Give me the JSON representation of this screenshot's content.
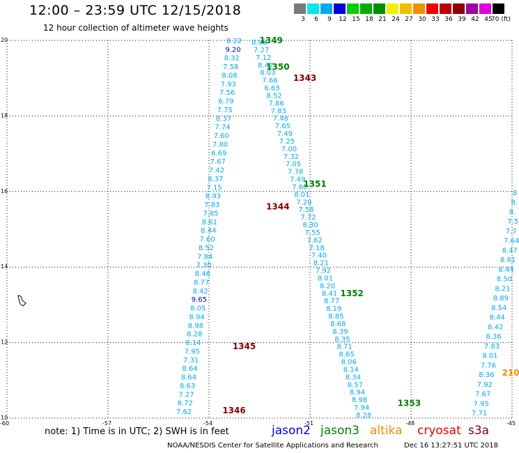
{
  "header": {
    "title": "12:00 – 23:59 UTC 12/15/2018",
    "subtitle": "12 hour collection of altimeter wave heights"
  },
  "color_scale": {
    "labels": [
      "3",
      "6",
      "9",
      "12",
      "15",
      "18",
      "21",
      "24",
      "27",
      "30",
      "33",
      "36",
      "39",
      "42",
      "45",
      "70 (ft)"
    ],
    "colors": [
      "#7a7a7a",
      "#00e8e8",
      "#00a8f0",
      "#0000e0",
      "#00d000",
      "#00b000",
      "#009000",
      "#f0f000",
      "#f0c000",
      "#f09000",
      "#f00000",
      "#c00000",
      "#900000",
      "#a000a0",
      "#e000e0",
      "#000000"
    ]
  },
  "map": {
    "lat_labels": [
      "20",
      "18",
      "16",
      "14",
      "12",
      "10"
    ],
    "lon_labels": [
      "-60",
      "-57",
      "-54",
      "-51",
      "-48",
      "-45"
    ],
    "coast": "coastline-island"
  },
  "chart_data": {
    "type": "scatter",
    "x_axis": "longitude",
    "y_axis": "latitude",
    "xlim": [
      -60,
      -45
    ],
    "ylim": [
      10,
      20
    ],
    "track_labels": [
      {
        "id": "1349",
        "lon": -52.5,
        "lat": 20.0,
        "color": "#008000"
      },
      {
        "id": "1350",
        "lon": -52.3,
        "lat": 19.3,
        "color": "#008000"
      },
      {
        "id": "1343",
        "lon": -51.5,
        "lat": 19.0,
        "color": "#800000"
      },
      {
        "id": "1351",
        "lon": -51.2,
        "lat": 16.2,
        "color": "#008000"
      },
      {
        "id": "1344",
        "lon": -52.3,
        "lat": 15.6,
        "color": "#800000"
      },
      {
        "id": "1352",
        "lon": -50.1,
        "lat": 13.3,
        "color": "#008000"
      },
      {
        "id": "1345",
        "lon": -53.3,
        "lat": 11.9,
        "color": "#800000"
      },
      {
        "id": "1353",
        "lon": -48.4,
        "lat": 10.4,
        "color": "#008000"
      },
      {
        "id": "1346",
        "lon": -53.6,
        "lat": 10.2,
        "color": "#800000"
      },
      {
        "id": "210",
        "lon": -45.3,
        "lat": 11.2,
        "color": "#f08c00"
      }
    ],
    "track_a": {
      "color": "#00a8f0",
      "values": [
        "8.22",
        "9.20",
        "8.32",
        "7.58",
        "8.08",
        "7.93",
        "7.56",
        "6.79",
        "7.75",
        "8.37",
        "7.74",
        "7.60",
        "7.80",
        "6.69",
        "7.67",
        "7.42",
        "8.37",
        "7.15",
        "8.93",
        "7.83",
        "7.85",
        "8.61",
        "8.44",
        "7.60",
        "8.52",
        "7.84",
        "7.30",
        "8.46",
        "8.77",
        "8.42",
        "9.65",
        "8.05",
        "8.94",
        "8.98",
        "8.28",
        "8.14",
        "7.95",
        "7.31",
        "8.64",
        "8.64",
        "8.63",
        "7.27",
        "6.72",
        "7.62"
      ]
    },
    "track_b": {
      "color": "#00a8f0",
      "values": [
        "8.08",
        "7.27",
        "7.12",
        "8.47",
        "8.03",
        "7.66",
        "6.63",
        "8.52",
        "7.86",
        "7.83",
        "7.48",
        "7.65",
        "7.49",
        "7.25",
        "7.00",
        "7.32",
        "7.05",
        "7.78",
        "7.49",
        "7.60",
        "8.01",
        "7.20",
        "7.58",
        "7.72",
        "8.30",
        "7.55",
        "7.62",
        "7.18",
        "7.40",
        "8.21",
        "7.92",
        "8.01",
        "8.20",
        "8.41",
        "8.77",
        "8.19",
        "8.85",
        "8.68",
        "8.39",
        "8.35",
        "8.71",
        "8.65",
        "8.06",
        "8.14",
        "8.34",
        "8.57",
        "8.94",
        "8.98",
        "7.94",
        "8.28"
      ]
    },
    "track_c": {
      "color": "#00a8f0",
      "values": [
        "8",
        "8.",
        "8.",
        "7.5",
        "7.7",
        "7.64",
        "8.47",
        "8.61",
        "8.44",
        "8.50",
        "8.21",
        "8.89",
        "8.54",
        "8.44",
        "8.42",
        "8.36",
        "7.83",
        "8.01",
        "7.76",
        "8.36",
        "7.92",
        "7.67",
        "7.95",
        "7.71"
      ]
    }
  },
  "footer": {
    "note": "note: 1) Time is in UTC; 2) SWH is in feet",
    "legend": [
      "jason2",
      "jason3",
      "altika",
      "cryosat",
      "s3a"
    ],
    "credit": "NOAA/NESDIS Center for Satellite Applications and Research",
    "timestamp": "Dec 16 13:27:51 UTC 2018"
  }
}
